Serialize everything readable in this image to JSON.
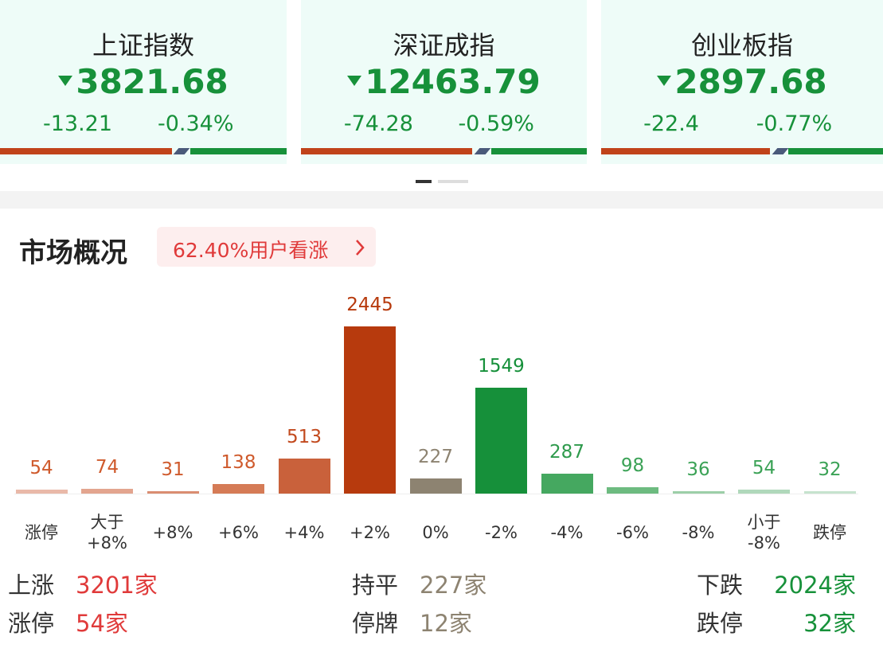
{
  "index_cards": [
    {
      "name": "上证指数",
      "value": "3821.68",
      "change": "-13.21",
      "change_pct": "-0.34%"
    },
    {
      "name": "深证成指",
      "value": "12463.79",
      "change": "-74.28",
      "change_pct": "-0.59%"
    },
    {
      "name": "创业板指",
      "value": "2897.68",
      "change": "-22.4",
      "change_pct": "-0.77%"
    }
  ],
  "section": {
    "title": "市场概况",
    "badge": "62.40%用户看涨"
  },
  "chart_data": {
    "type": "bar",
    "categories": [
      "涨停",
      "大于\n+8%",
      "+8%",
      "+6%",
      "+4%",
      "+2%",
      "0%",
      "-2%",
      "-4%",
      "-6%",
      "-8%",
      "小于\n-8%",
      "跌停"
    ],
    "values": [
      54,
      74,
      31,
      138,
      513,
      2445,
      227,
      1549,
      287,
      98,
      36,
      54,
      32
    ],
    "colors": [
      "#e9b9a9",
      "#e3a58f",
      "#da8d71",
      "#d57b56",
      "#c9613b",
      "#b73a0d",
      "#8d8371",
      "#16903a",
      "#45a860",
      "#6dbb80",
      "#9ccfa8",
      "#b0d8bb",
      "#c6e3ce"
    ],
    "label_colors": [
      "#cf5a2c",
      "#cf5a2c",
      "#cf5a2c",
      "#cf5a2c",
      "#c24a1e",
      "#b73a0d",
      "#8d8371",
      "#16903a",
      "#2e9a4c",
      "#3ba256",
      "#3ba256",
      "#3ba256",
      "#3ba256"
    ]
  },
  "summary": [
    [
      {
        "label": "上涨",
        "value": "3201家"
      },
      {
        "label": "持平",
        "value": "227家"
      },
      {
        "label": "下跌",
        "value": "2024家"
      }
    ],
    [
      {
        "label": "涨停",
        "value": "54家"
      },
      {
        "label": "停牌",
        "value": "12家"
      },
      {
        "label": "跌停",
        "value": "32家"
      }
    ]
  ]
}
